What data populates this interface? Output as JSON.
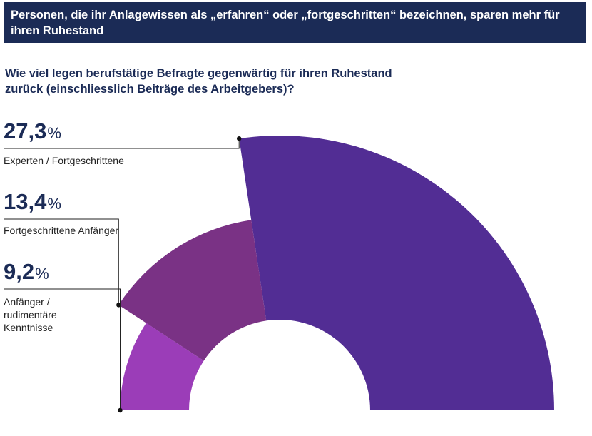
{
  "header": {
    "title": "Personen, die ihr Anlagewissen als „erfahren“ oder „fortgeschritten“ bezeichnen, sparen mehr für ihren Ruhestand"
  },
  "chart_data": {
    "type": "pie",
    "title": "Personen, die ihr Anlagewissen als „erfahren“ oder „fortgeschritten“ bezeichnen, sparen mehr für ihren Ruhestand",
    "subtitle": "Wie viel legen berufstätige Befragte gegenwärtig für ihren Ruhestand zurück (einschliesslich Beiträge des Arbeitgebers)?",
    "unit": "%",
    "categories": [
      "Experten / Fortgeschrittene",
      "Fortgeschrittene Anfänger",
      "Anfänger / rudimentäre Kenntnisse"
    ],
    "values": [
      27.3,
      13.4,
      9.2
    ],
    "value_labels": [
      "27,3",
      "13,4",
      "9,2"
    ],
    "label_lines": [
      [
        "Experten / Fortgeschrittene"
      ],
      [
        "Fortgeschrittene Anfänger"
      ],
      [
        "Anfänger /",
        "rudimentäre",
        "Kenntnisse"
      ]
    ],
    "colors": [
      "#522d94",
      "#7a3285",
      "#9b3db8"
    ]
  }
}
